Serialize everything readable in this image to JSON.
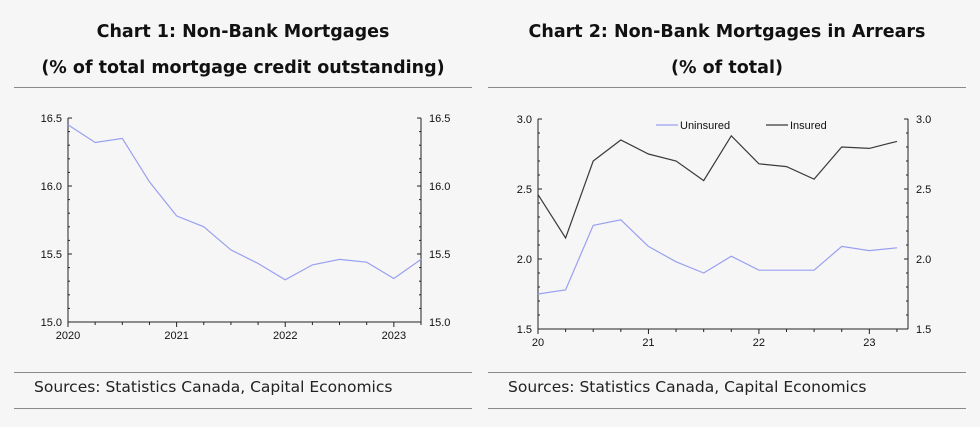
{
  "chart_data": [
    {
      "type": "line",
      "title": "Chart 1: Non-Bank Mortgages",
      "subtitle": "(% of total mortgage credit outstanding)",
      "source": "Sources: Statistics Canada, Capital Economics",
      "x_ticks": [
        "2020",
        "2021",
        "2022",
        "2023"
      ],
      "xlim": [
        2020.0,
        2023.25
      ],
      "ylim": [
        15.0,
        16.5
      ],
      "y_ticks_left": [
        "16.5",
        "16.0",
        "15.5",
        "15.0"
      ],
      "y_ticks_right": [
        "16.5",
        "16.0",
        "15.5",
        "15.0"
      ],
      "grid": false,
      "colors": {
        "line": "#9aa0f0"
      },
      "series": [
        {
          "x": [
            2020.0,
            2020.25,
            2020.5,
            2020.75,
            2021.0,
            2021.25,
            2021.5,
            2021.75,
            2022.0,
            2022.25,
            2022.5,
            2022.75,
            2023.0,
            2023.25
          ],
          "values": [
            16.45,
            16.32,
            16.35,
            16.03,
            15.78,
            15.7,
            15.53,
            15.43,
            15.31,
            15.42,
            15.46,
            15.44,
            15.32,
            15.46
          ]
        }
      ]
    },
    {
      "type": "line",
      "title": "Chart 2: Non-Bank Mortgages in Arrears",
      "subtitle": "(% of total)",
      "source": "Sources: Statistics Canada, Capital Economics",
      "x_ticks": [
        "20",
        "21",
        "22",
        "23"
      ],
      "xlim": [
        2020.0,
        2023.35
      ],
      "ylim": [
        1.5,
        3.0
      ],
      "y_ticks_left": [
        "3.0",
        "2.5",
        "2.0",
        "1.5"
      ],
      "y_ticks_right": [
        "3.0",
        "2.5",
        "2.0",
        "1.5"
      ],
      "grid": false,
      "legend_position": "top",
      "series": [
        {
          "name": "Uninsured",
          "color": "#9aa0f0",
          "x": [
            2020.0,
            2020.25,
            2020.5,
            2020.75,
            2021.0,
            2021.25,
            2021.5,
            2021.75,
            2022.0,
            2022.25,
            2022.5,
            2022.75,
            2023.0,
            2023.25
          ],
          "values": [
            1.75,
            1.78,
            2.24,
            2.28,
            2.09,
            1.98,
            1.9,
            2.02,
            1.92,
            1.92,
            1.92,
            2.09,
            2.06,
            2.08
          ]
        },
        {
          "name": "Insured",
          "color": "#3a3a3a",
          "x": [
            2020.0,
            2020.25,
            2020.5,
            2020.75,
            2021.0,
            2021.25,
            2021.5,
            2021.75,
            2022.0,
            2022.25,
            2022.5,
            2022.75,
            2023.0,
            2023.25
          ],
          "values": [
            2.46,
            2.15,
            2.7,
            2.85,
            2.75,
            2.7,
            2.56,
            2.88,
            2.68,
            2.66,
            2.57,
            2.8,
            2.79,
            2.84
          ]
        }
      ]
    }
  ]
}
